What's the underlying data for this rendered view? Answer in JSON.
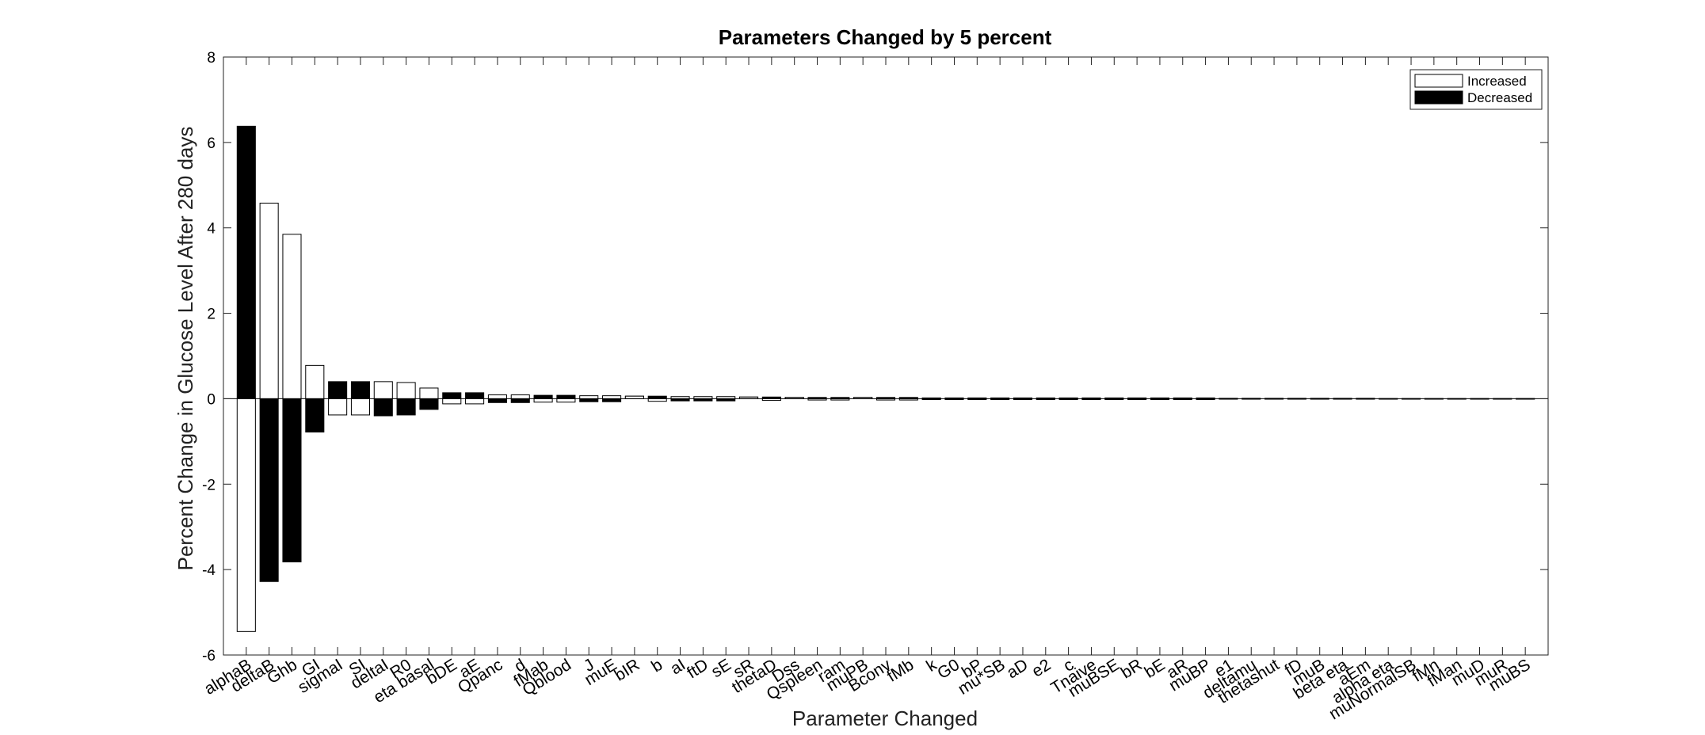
{
  "chart_data": {
    "type": "bar",
    "title": "Parameters Changed by 5 percent",
    "xlabel": "Parameter Changed",
    "ylabel": "Percent Change in Glucose Level After 280 days",
    "ylim": [
      -6,
      8
    ],
    "yticks": [
      -6,
      -4,
      -2,
      0,
      2,
      4,
      6,
      8
    ],
    "legend_position": "top-right",
    "grid": false,
    "colors": {
      "Increased": "#ffffff",
      "Decreased": "#000000",
      "edge": "#000000"
    },
    "categories": [
      "alphaB",
      "deltaB",
      "Ghb",
      "GI",
      "sigmaI",
      "SI",
      "deltaI",
      "R0",
      "eta basal",
      "bDE",
      "aE",
      "Qpanc",
      "d",
      "fMab",
      "Qblood",
      "J",
      "muE",
      "bIR",
      "b",
      "aI",
      "ftD",
      "sE",
      "sR",
      "thetaD",
      "Dss",
      "Qspleen",
      "ram",
      "muPB",
      "Bconv",
      "fMb",
      "k",
      "G0",
      "bP",
      "mu*SB",
      "aD",
      "e2",
      "c",
      "Tnaive",
      "muBSE",
      "bR",
      "bE",
      "aR",
      "muBP",
      "e1",
      "deltamu",
      "thetashut",
      "fD",
      "muB",
      "beta eta",
      "aEm",
      "alpha eta",
      "muNormalSB",
      "fMn",
      "fMan",
      "muD",
      "muR",
      "muBS"
    ],
    "series": [
      {
        "name": "Increased",
        "values": [
          -5.45,
          4.58,
          3.85,
          0.78,
          -0.38,
          -0.38,
          0.4,
          0.38,
          0.25,
          -0.12,
          -0.12,
          0.09,
          0.09,
          -0.08,
          -0.08,
          0.07,
          0.07,
          0.06,
          -0.06,
          0.05,
          0.05,
          0.05,
          0.04,
          -0.04,
          0.03,
          -0.03,
          -0.03,
          0.03,
          -0.03,
          -0.03,
          0.02,
          0.02,
          0.02,
          0.02,
          0.02,
          0.02,
          0.02,
          0.02,
          0.02,
          0.02,
          0.02,
          0.02,
          0.02,
          0.01,
          0.01,
          0.01,
          0.01,
          0.01,
          0.01,
          0.01,
          0.005,
          0.005,
          0.005,
          0.005,
          0.005,
          0.005,
          0.005
        ]
      },
      {
        "name": "Decreased",
        "values": [
          6.38,
          -4.28,
          -3.82,
          -0.78,
          0.4,
          0.4,
          -0.4,
          -0.38,
          -0.25,
          0.14,
          0.14,
          -0.09,
          -0.09,
          0.08,
          0.08,
          -0.07,
          -0.07,
          0.06,
          0.06,
          -0.05,
          -0.05,
          -0.05,
          0.04,
          0.04,
          0.03,
          0.03,
          0.03,
          0.03,
          0.03,
          0.03,
          -0.02,
          -0.02,
          -0.02,
          -0.02,
          -0.02,
          -0.02,
          -0.02,
          -0.02,
          -0.02,
          -0.02,
          -0.02,
          -0.02,
          -0.02,
          -0.01,
          -0.01,
          -0.01,
          -0.01,
          -0.01,
          -0.01,
          -0.01,
          -0.005,
          -0.005,
          -0.005,
          -0.005,
          -0.005,
          -0.005,
          -0.005
        ]
      }
    ]
  }
}
